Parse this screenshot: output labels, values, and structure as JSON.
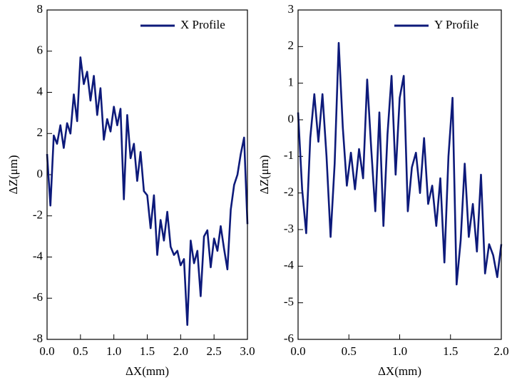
{
  "chart_data": [
    {
      "type": "line",
      "xlabel": "ΔX(mm)",
      "ylabel": "ΔZ(μm)",
      "legend": "upper right",
      "x": [
        0,
        0.05,
        0.1,
        0.15,
        0.2,
        0.25,
        0.3,
        0.35,
        0.4,
        0.45,
        0.5,
        0.55,
        0.6,
        0.65,
        0.7,
        0.75,
        0.8,
        0.85,
        0.9,
        0.95,
        1,
        1.05,
        1.1,
        1.15,
        1.2,
        1.25,
        1.3,
        1.35,
        1.4,
        1.45,
        1.5,
        1.55,
        1.6,
        1.65,
        1.7,
        1.75,
        1.8,
        1.85,
        1.9,
        1.95,
        2,
        2.05,
        2.1,
        2.15,
        2.2,
        2.25,
        2.3,
        2.35,
        2.4,
        2.45,
        2.5,
        2.55,
        2.6,
        2.65,
        2.7,
        2.75,
        2.8,
        2.85,
        2.9,
        2.95,
        3
      ],
      "series": [
        {
          "name": "X Profile",
          "color": "#0d1a7a",
          "values": [
            1.0,
            -1.5,
            1.9,
            1.5,
            2.4,
            1.3,
            2.5,
            2.0,
            3.9,
            2.6,
            5.7,
            4.4,
            5.0,
            3.6,
            4.8,
            2.9,
            4.2,
            1.7,
            2.7,
            2.1,
            3.3,
            2.4,
            3.2,
            -1.2,
            2.9,
            0.8,
            1.5,
            -0.3,
            1.1,
            -0.8,
            -1.0,
            -2.6,
            -1.0,
            -3.9,
            -2.2,
            -3.2,
            -1.8,
            -3.5,
            -3.9,
            -3.7,
            -4.4,
            -4.1,
            -7.3,
            -3.2,
            -4.3,
            -3.7,
            -5.9,
            -3.0,
            -2.7,
            -4.5,
            -3.1,
            -3.7,
            -2.5,
            -3.6,
            -4.6,
            -1.7,
            -0.5,
            0.0,
            1.0,
            1.8,
            -2.4
          ]
        }
      ],
      "xlim": [
        0,
        3
      ],
      "ylim": [
        -8,
        8
      ],
      "xticks": [
        {
          "value": 0,
          "label": "0.0"
        },
        0.5,
        {
          "value": 1,
          "label": "1.0"
        },
        1.5,
        {
          "value": 2,
          "label": "2.0"
        },
        2.5,
        {
          "value": 3,
          "label": "3.0"
        }
      ],
      "yticks": [
        -8,
        -6,
        -4,
        -2,
        0,
        2,
        4,
        6,
        8
      ]
    },
    {
      "type": "line",
      "xlabel": "ΔX(mm)",
      "ylabel": "ΔZ(μm)",
      "legend": "upper right",
      "x": [
        0,
        0.04,
        0.08,
        0.12,
        0.16,
        0.2,
        0.24,
        0.28,
        0.32,
        0.36,
        0.4,
        0.44,
        0.48,
        0.52,
        0.56,
        0.6,
        0.64,
        0.68,
        0.72,
        0.76,
        0.8,
        0.84,
        0.88,
        0.92,
        0.96,
        1,
        1.04,
        1.08,
        1.12,
        1.16,
        1.2,
        1.24,
        1.28,
        1.32,
        1.36,
        1.4,
        1.44,
        1.48,
        1.52,
        1.56,
        1.6,
        1.64,
        1.68,
        1.72,
        1.76,
        1.8,
        1.84,
        1.88,
        1.92,
        1.96,
        2
      ],
      "series": [
        {
          "name": "Y Profile",
          "color": "#0d1a7a",
          "values": [
            0.2,
            -1.9,
            -3.1,
            -0.5,
            0.7,
            -0.6,
            0.7,
            -1.0,
            -3.2,
            -1.2,
            2.1,
            -0.2,
            -1.8,
            -0.9,
            -1.9,
            -0.8,
            -1.6,
            1.1,
            -0.8,
            -2.5,
            0.2,
            -2.9,
            -0.4,
            1.2,
            -1.5,
            0.6,
            1.2,
            -2.5,
            -1.3,
            -0.9,
            -2.0,
            -0.5,
            -2.3,
            -1.8,
            -2.9,
            -1.6,
            -3.9,
            -1.0,
            0.6,
            -4.5,
            -3.3,
            -1.2,
            -3.2,
            -2.3,
            -3.6,
            -1.5,
            -4.2,
            -3.4,
            -3.7,
            -4.3,
            -3.4
          ]
        }
      ],
      "xlim": [
        0,
        2
      ],
      "ylim": [
        -6,
        3
      ],
      "xticks": [
        {
          "value": 0,
          "label": "0.0"
        },
        0.5,
        {
          "value": 1,
          "label": "1.0"
        },
        1.5,
        {
          "value": 2,
          "label": "2.0"
        }
      ],
      "yticks": [
        -6,
        -5,
        -4,
        -3,
        -2,
        -1,
        0,
        1,
        2,
        3
      ]
    }
  ]
}
